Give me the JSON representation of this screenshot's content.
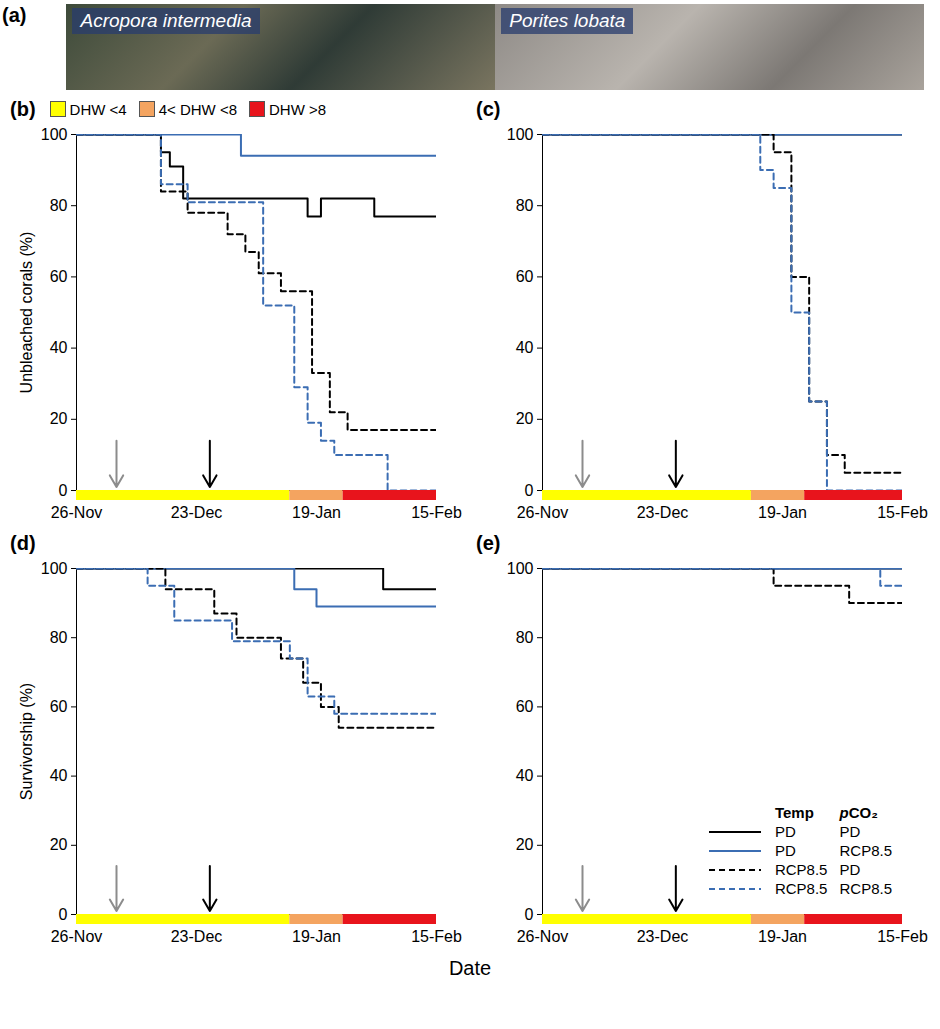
{
  "panel_a": {
    "letter": "(a)",
    "species": [
      "Acropora intermedia",
      "Porites lobata"
    ]
  },
  "x_title": "Date",
  "chart_data": [
    {
      "type": "line",
      "letter": "(b)",
      "ylabel": "Unbleached corals (%)",
      "xlim": [
        0,
        81
      ],
      "xticks": [
        {
          "value": 0,
          "label": "26-Nov"
        },
        {
          "value": 27,
          "label": "23-Dec"
        },
        {
          "value": 54,
          "label": "19-Jan"
        },
        {
          "value": 81,
          "label": "15-Feb"
        }
      ],
      "ylim": [
        0,
        100
      ],
      "yticks": [
        0,
        20,
        40,
        60,
        80,
        100
      ],
      "dhw_periods": [
        {
          "label": "DHW <4",
          "color": "#ffff00",
          "start": 0,
          "end": 48
        },
        {
          "label": "4< DHW <8",
          "color": "#f4a460",
          "start": 48,
          "end": 60
        },
        {
          "label": "DHW >8",
          "color": "#e8141c",
          "start": 60,
          "end": 81
        }
      ],
      "arrows": [
        {
          "x": 9,
          "color": "#8c8c8c"
        },
        {
          "x": 30,
          "color": "#000000"
        }
      ],
      "series": [
        {
          "temp": "PD",
          "pco2": "PD",
          "color": "#000000",
          "line_style": "solid",
          "x": [
            0,
            19,
            21,
            24,
            52,
            55,
            67,
            81
          ],
          "values": [
            100,
            95,
            91,
            82,
            77,
            82,
            77,
            77
          ]
        },
        {
          "temp": "PD",
          "pco2": "RCP8.5",
          "color": "#3b6db3",
          "line_style": "solid",
          "x": [
            0,
            37,
            81
          ],
          "values": [
            100,
            94,
            94
          ]
        },
        {
          "temp": "RCP8.5",
          "pco2": "PD",
          "color": "#000000",
          "line_style": "dashed",
          "x": [
            0,
            19,
            25,
            34,
            38,
            41,
            46,
            53,
            57,
            61,
            81
          ],
          "values": [
            100,
            84,
            78,
            72,
            67,
            61,
            56,
            33,
            22,
            17,
            17
          ]
        },
        {
          "temp": "RCP8.5",
          "pco2": "RCP8.5",
          "color": "#3b6db3",
          "line_style": "dashed",
          "x": [
            0,
            19,
            25,
            42,
            49,
            52,
            55,
            58,
            70,
            81
          ],
          "values": [
            100,
            86,
            81,
            52,
            29,
            19,
            14,
            10,
            0,
            0
          ]
        }
      ]
    },
    {
      "type": "line",
      "letter": "(c)",
      "xlim": [
        0,
        81
      ],
      "xticks": [
        {
          "value": 0,
          "label": "26-Nov"
        },
        {
          "value": 27,
          "label": "23-Dec"
        },
        {
          "value": 54,
          "label": "19-Jan"
        },
        {
          "value": 81,
          "label": "15-Feb"
        }
      ],
      "ylim": [
        0,
        100
      ],
      "yticks": [
        0,
        20,
        40,
        60,
        80,
        100
      ],
      "dhw_periods": [
        {
          "label": "DHW <4",
          "color": "#ffff00",
          "start": 0,
          "end": 47
        },
        {
          "label": "4< DHW <8",
          "color": "#f4a460",
          "start": 47,
          "end": 59
        },
        {
          "label": "DHW >8",
          "color": "#e8141c",
          "start": 59,
          "end": 81
        }
      ],
      "arrows": [
        {
          "x": 9,
          "color": "#8c8c8c"
        },
        {
          "x": 30,
          "color": "#000000"
        }
      ],
      "series": [
        {
          "temp": "PD",
          "pco2": "PD",
          "color": "#000000",
          "line_style": "solid",
          "x": [
            0,
            81
          ],
          "values": [
            100,
            100
          ]
        },
        {
          "temp": "PD",
          "pco2": "RCP8.5",
          "color": "#3b6db3",
          "line_style": "solid",
          "x": [
            0,
            81
          ],
          "values": [
            100,
            100
          ]
        },
        {
          "temp": "RCP8.5",
          "pco2": "PD",
          "color": "#000000",
          "line_style": "dashed",
          "x": [
            0,
            52,
            56,
            60,
            64,
            68,
            81
          ],
          "values": [
            100,
            95,
            60,
            25,
            10,
            5,
            5
          ]
        },
        {
          "temp": "RCP8.5",
          "pco2": "RCP8.5",
          "color": "#3b6db3",
          "line_style": "dashed",
          "x": [
            0,
            49,
            52,
            56,
            60,
            64,
            81
          ],
          "values": [
            100,
            90,
            85,
            50,
            25,
            0,
            0
          ]
        }
      ]
    },
    {
      "type": "line",
      "letter": "(d)",
      "ylabel": "Survivorship (%)",
      "xlim": [
        0,
        81
      ],
      "xticks": [
        {
          "value": 0,
          "label": "26-Nov"
        },
        {
          "value": 27,
          "label": "23-Dec"
        },
        {
          "value": 54,
          "label": "19-Jan"
        },
        {
          "value": 81,
          "label": "15-Feb"
        }
      ],
      "ylim": [
        0,
        100
      ],
      "yticks": [
        0,
        20,
        40,
        60,
        80,
        100
      ],
      "dhw_periods": [
        {
          "label": "DHW <4",
          "color": "#ffff00",
          "start": 0,
          "end": 48
        },
        {
          "label": "4< DHW <8",
          "color": "#f4a460",
          "start": 48,
          "end": 60
        },
        {
          "label": "DHW >8",
          "color": "#e8141c",
          "start": 60,
          "end": 81
        }
      ],
      "arrows": [
        {
          "x": 9,
          "color": "#8c8c8c"
        },
        {
          "x": 30,
          "color": "#000000"
        }
      ],
      "series": [
        {
          "temp": "PD",
          "pco2": "PD",
          "color": "#000000",
          "line_style": "solid",
          "x": [
            0,
            69,
            81
          ],
          "values": [
            100,
            94,
            94
          ]
        },
        {
          "temp": "PD",
          "pco2": "RCP8.5",
          "color": "#3b6db3",
          "line_style": "solid",
          "x": [
            0,
            49,
            54,
            81
          ],
          "values": [
            100,
            94,
            89,
            89
          ]
        },
        {
          "temp": "RCP8.5",
          "pco2": "PD",
          "color": "#000000",
          "line_style": "dashed",
          "x": [
            0,
            20,
            31,
            36,
            46,
            51,
            55,
            59,
            81
          ],
          "values": [
            100,
            94,
            87,
            80,
            74,
            67,
            60,
            54,
            54
          ]
        },
        {
          "temp": "RCP8.5",
          "pco2": "RCP8.5",
          "color": "#3b6db3",
          "line_style": "dashed",
          "x": [
            0,
            16,
            22,
            35,
            48,
            52,
            58,
            81
          ],
          "values": [
            100,
            95,
            85,
            79,
            74,
            63,
            58,
            58
          ]
        }
      ]
    },
    {
      "type": "line",
      "letter": "(e)",
      "xlim": [
        0,
        81
      ],
      "xticks": [
        {
          "value": 0,
          "label": "26-Nov"
        },
        {
          "value": 27,
          "label": "23-Dec"
        },
        {
          "value": 54,
          "label": "19-Jan"
        },
        {
          "value": 81,
          "label": "15-Feb"
        }
      ],
      "ylim": [
        0,
        100
      ],
      "yticks": [
        0,
        20,
        40,
        60,
        80,
        100
      ],
      "dhw_periods": [
        {
          "label": "DHW <4",
          "color": "#ffff00",
          "start": 0,
          "end": 47
        },
        {
          "label": "4< DHW <8",
          "color": "#f4a460",
          "start": 47,
          "end": 59
        },
        {
          "label": "DHW >8",
          "color": "#e8141c",
          "start": 59,
          "end": 81
        }
      ],
      "arrows": [
        {
          "x": 9,
          "color": "#8c8c8c"
        },
        {
          "x": 30,
          "color": "#000000"
        }
      ],
      "legend": "bottom-right",
      "legend_headers": [
        "Temp",
        "pCO₂"
      ],
      "series": [
        {
          "temp": "PD",
          "pco2": "PD",
          "color": "#000000",
          "line_style": "solid",
          "x": [
            0,
            81
          ],
          "values": [
            100,
            100
          ]
        },
        {
          "temp": "PD",
          "pco2": "RCP8.5",
          "color": "#3b6db3",
          "line_style": "solid",
          "x": [
            0,
            81
          ],
          "values": [
            100,
            100
          ]
        },
        {
          "temp": "RCP8.5",
          "pco2": "PD",
          "color": "#000000",
          "line_style": "dashed",
          "x": [
            0,
            52,
            69,
            81
          ],
          "values": [
            100,
            95,
            90,
            90
          ]
        },
        {
          "temp": "RCP8.5",
          "pco2": "RCP8.5",
          "color": "#3b6db3",
          "line_style": "dashed",
          "x": [
            0,
            76,
            81
          ],
          "values": [
            100,
            95,
            95
          ]
        }
      ]
    }
  ]
}
